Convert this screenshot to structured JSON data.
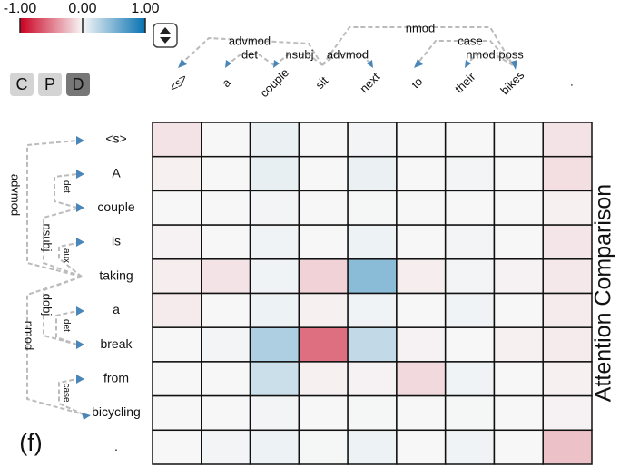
{
  "chart_data": {
    "type": "heatmap",
    "title": "Attention Comparison",
    "panel_label": "(f)",
    "x_categories": [
      "<s>",
      "a",
      "couple",
      "sit",
      "next",
      "to",
      "their",
      "bikes",
      "."
    ],
    "y_categories": [
      "<s>",
      "A",
      "couple",
      "is",
      "taking",
      "a",
      "break",
      "from",
      "bicycling",
      "."
    ],
    "values": [
      [
        -0.08,
        0,
        0.05,
        0,
        0.02,
        0,
        0,
        0,
        -0.08
      ],
      [
        -0.03,
        0,
        0.06,
        0,
        0.05,
        0,
        0.02,
        0,
        -0.1
      ],
      [
        0,
        0,
        0.02,
        0,
        0.01,
        0,
        0,
        0,
        -0.03
      ],
      [
        -0.02,
        0,
        0.03,
        0,
        0.04,
        0,
        0.02,
        0,
        -0.07
      ],
      [
        -0.04,
        -0.08,
        0.03,
        -0.15,
        0.45,
        -0.04,
        0.02,
        -0.02,
        -0.06
      ],
      [
        -0.05,
        0,
        0.04,
        -0.03,
        0.03,
        0,
        0.03,
        0,
        -0.05
      ],
      [
        0,
        0.02,
        0.3,
        -0.55,
        0.22,
        -0.02,
        0,
        -0.03,
        -0.05
      ],
      [
        0,
        0,
        0.18,
        -0.03,
        -0.02,
        -0.12,
        0.03,
        0,
        -0.03
      ],
      [
        0,
        0,
        0.02,
        0,
        0.01,
        0,
        0.01,
        0,
        -0.02
      ],
      [
        0,
        0.02,
        0.04,
        0.01,
        0.04,
        0,
        0.03,
        0,
        -0.22
      ]
    ],
    "colorscale": [
      "#ca0020",
      "#f7f7f7",
      "#0571b0"
    ],
    "clim": [
      -1,
      1
    ],
    "cticks": [
      {
        "value": -1,
        "label": "-1.00"
      },
      {
        "value": 0,
        "label": "0.00"
      },
      {
        "value": 1,
        "label": "1.00"
      }
    ]
  },
  "controls": {
    "buttons": [
      "C",
      "P",
      "D"
    ]
  },
  "top_dependencies": [
    "advmod",
    "det",
    "nsubj",
    "advmod",
    "nmod",
    "case",
    "nmod:poss"
  ],
  "left_dependencies": [
    "advmod",
    "det",
    "nsubj",
    "aux",
    "dobj",
    "det",
    "nmod",
    "case"
  ]
}
